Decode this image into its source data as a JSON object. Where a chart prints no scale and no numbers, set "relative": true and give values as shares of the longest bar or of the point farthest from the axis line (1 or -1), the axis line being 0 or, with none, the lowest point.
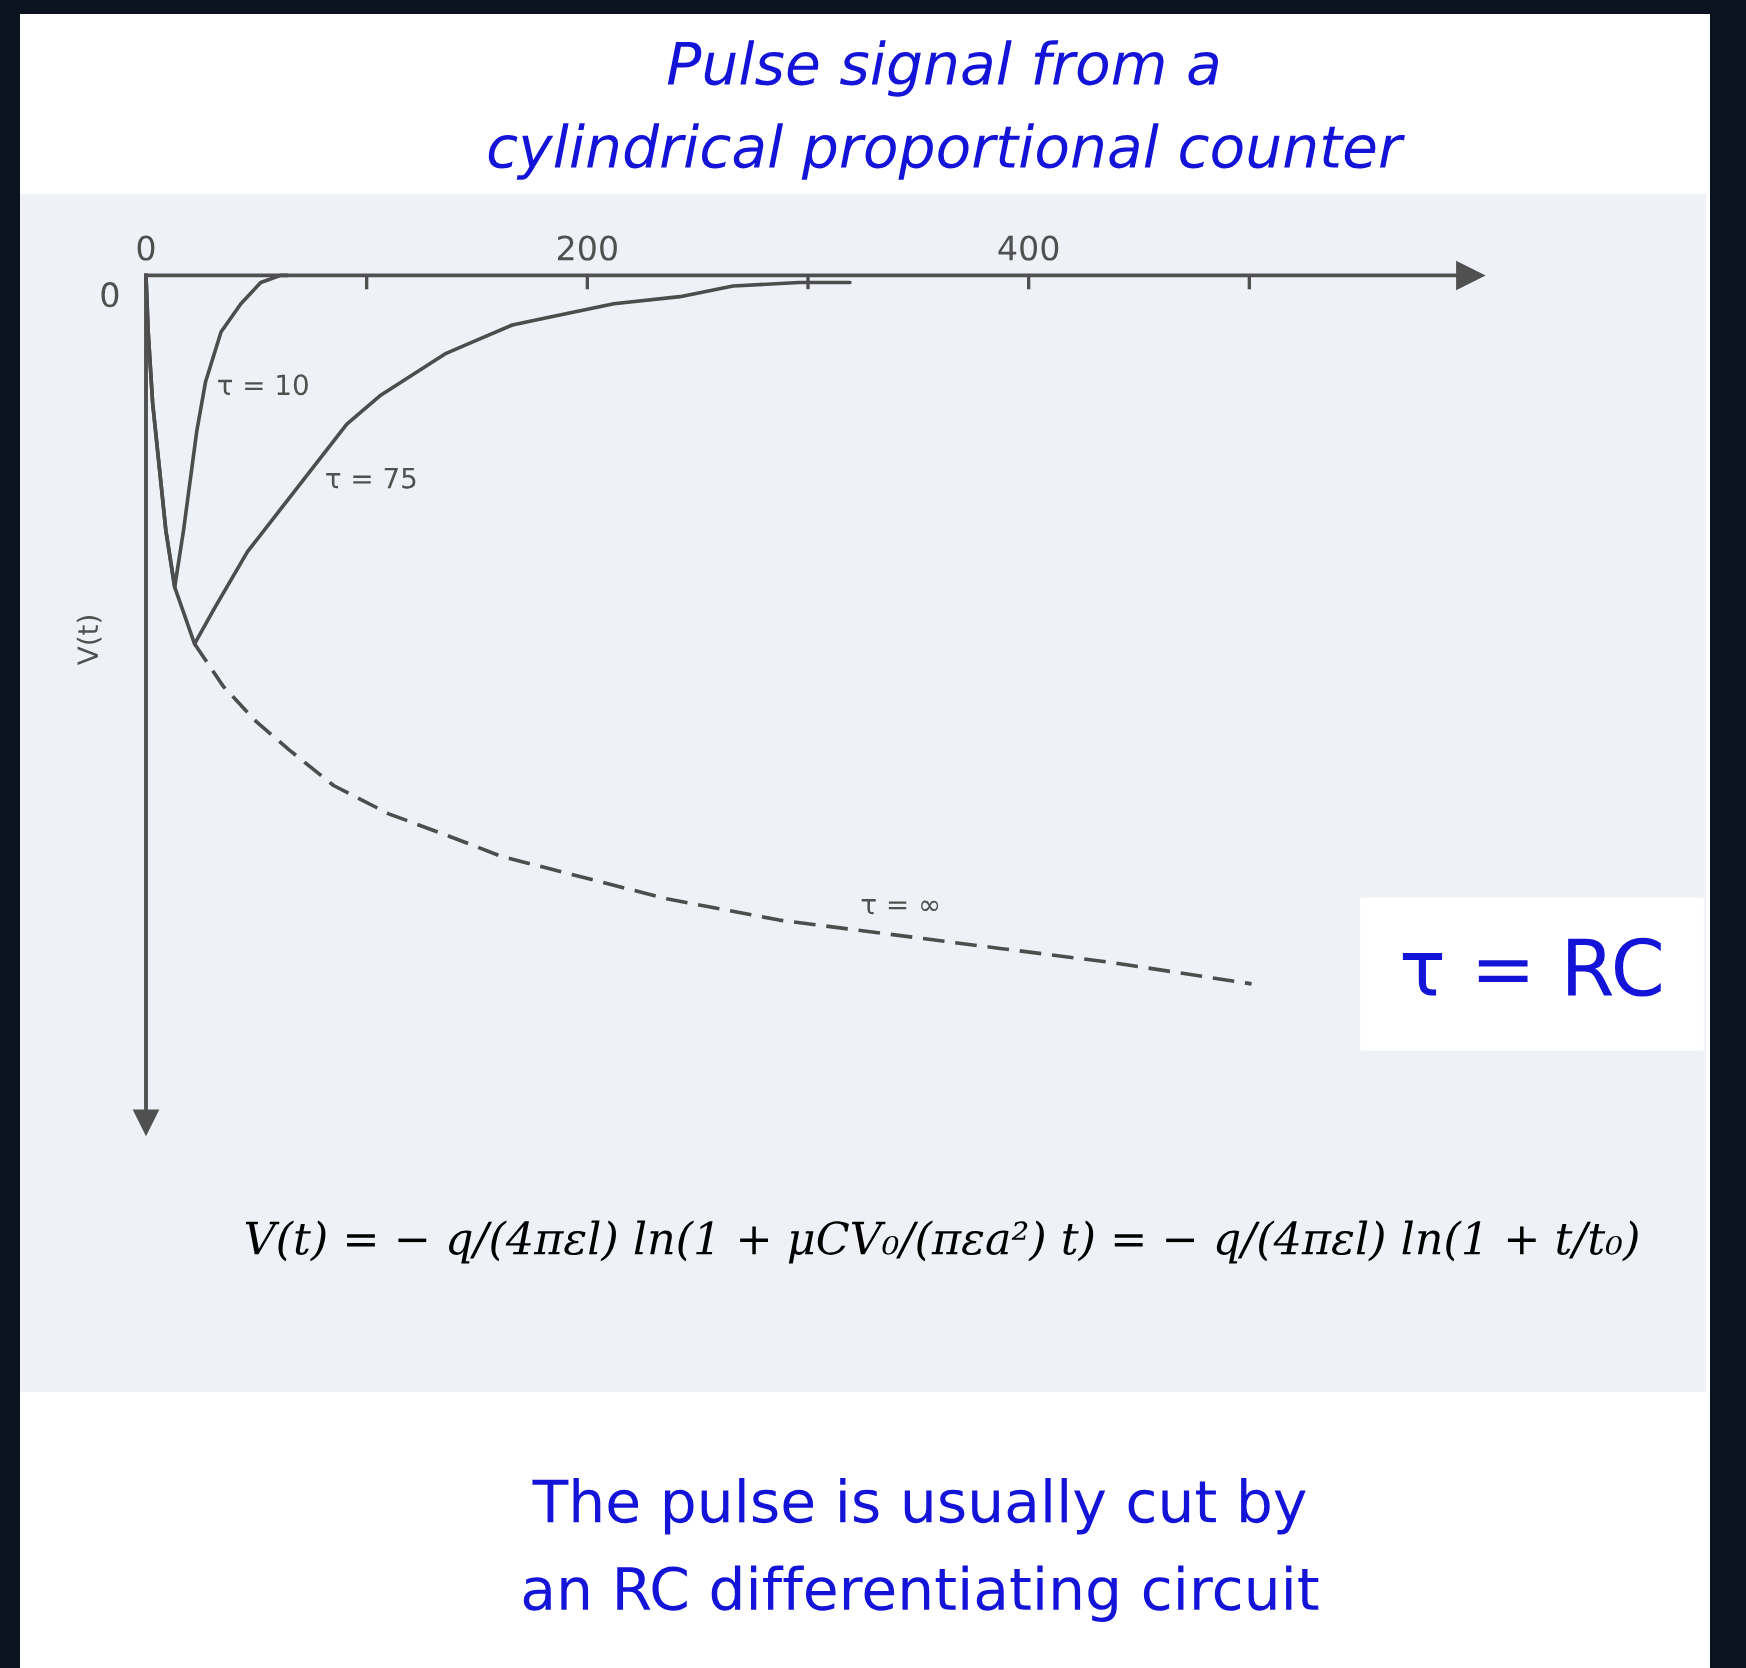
{
  "chart_data": {
    "type": "line",
    "title": "Pulse signal from a\ncylindrical proportional counter",
    "ylabel": "V(t)",
    "relative": true,
    "line_style": "solid",
    "xlim": [
      0,
      600
    ],
    "xticks": [
      0,
      {
        "value": 100,
        "label": null
      },
      200,
      {
        "value": 300,
        "label": null
      },
      400,
      {
        "value": 500,
        "label": null
      }
    ],
    "series": [
      {
        "name": "τ = 10",
        "color": "#4d4d4d",
        "x": [
          0,
          1,
          3,
          6,
          9,
          13,
          17,
          23,
          27,
          34,
          43,
          52,
          61,
          64
        ],
        "values": [
          0,
          -0.08,
          -0.18,
          -0.27,
          -0.36,
          -0.44,
          -0.36,
          -0.22,
          -0.15,
          -0.08,
          -0.04,
          -0.01,
          0,
          0
        ]
      },
      {
        "name": "τ = 75",
        "color": "#4d4d4d",
        "x": [
          0,
          1,
          3,
          6,
          9,
          13,
          22,
          31,
          46,
          61,
          76,
          91,
          106,
          121,
          136,
          151,
          166,
          181,
          212,
          242,
          266,
          296,
          319
        ],
        "values": [
          0,
          -0.08,
          -0.18,
          -0.27,
          -0.36,
          -0.44,
          -0.52,
          -0.47,
          -0.39,
          -0.33,
          -0.27,
          -0.21,
          -0.17,
          -0.14,
          -0.11,
          -0.09,
          -0.07,
          -0.06,
          -0.04,
          -0.03,
          -0.015,
          -0.01,
          -0.01
        ]
      },
      {
        "name": "τ = ∞",
        "color": "#4d4d4d",
        "line_style": "dashed",
        "x": [
          22,
          35,
          50,
          65,
          85,
          110,
          136,
          161,
          186,
          236,
          287,
          337,
          387,
          438,
          501
        ],
        "values": [
          -0.52,
          -0.58,
          -0.63,
          -0.67,
          -0.72,
          -0.76,
          -0.79,
          -0.82,
          -0.84,
          -0.88,
          -0.91,
          -0.93,
          -0.95,
          -0.97,
          -1
        ]
      }
    ],
    "annotations": [
      "V(t) = − q/(4πεl) ln(1 + μCV₀/(πεa²) t) = − q/(4πεl) ln(1 + t/t₀)",
      "τ = RC",
      "The pulse is usually cut by\nan RC differentiating circuit",
      {
        "text": "0",
        "x": 0,
        "y": 0
      }
    ]
  }
}
